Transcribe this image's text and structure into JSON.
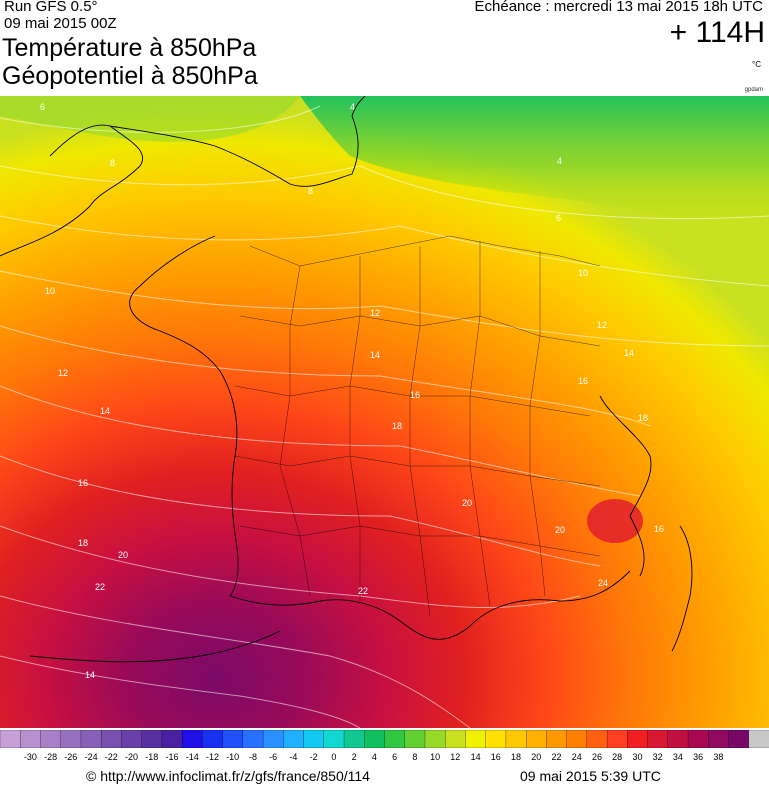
{
  "header": {
    "run_label": "Run GFS 0.5°",
    "run_date": "09 mai 2015 00Z",
    "title_line1": "Température à 850hPa",
    "title_line2": "Géopotentiel à 850hPa",
    "echeance": "Echéance : mercredi 13 mai 2015 18h UTC",
    "lead_time": "+ 114H",
    "unit": "°C",
    "credit": "gpdam"
  },
  "legend": {
    "min": -32,
    "max": 40,
    "step": 2,
    "colors": [
      "#c8a0d8",
      "#b890d0",
      "#a880c8",
      "#9870c0",
      "#8860b8",
      "#7850b0",
      "#6840a8",
      "#5830a0",
      "#4820a0",
      "#2010e8",
      "#1830f0",
      "#2050f8",
      "#2870ff",
      "#2890ff",
      "#20b0ff",
      "#10c8f0",
      "#10d8d0",
      "#10c890",
      "#10c060",
      "#30c840",
      "#60d030",
      "#98d828",
      "#c8e020",
      "#f0f000",
      "#ffe000",
      "#ffc800",
      "#ffb000",
      "#ff9800",
      "#ff8000",
      "#ff6010",
      "#ff4020",
      "#f02020",
      "#d81830",
      "#c01040",
      "#a80850",
      "#900860",
      "#780868",
      "#c8c8c8"
    ],
    "tick_labels": [
      "-30",
      "-28",
      "-26",
      "-24",
      "-22",
      "-20",
      "-18",
      "-16",
      "-14",
      "-12",
      "-10",
      "-8",
      "-6",
      "-4",
      "-2",
      "0",
      "2",
      "4",
      "6",
      "8",
      "10",
      "12",
      "14",
      "16",
      "18",
      "20",
      "22",
      "24",
      "26",
      "28",
      "30",
      "32",
      "34",
      "36",
      "38"
    ]
  },
  "map": {
    "contour_labels": [
      "6",
      "4",
      "4",
      "8",
      "8",
      "6",
      "10",
      "10",
      "12",
      "12",
      "12",
      "14",
      "14",
      "14",
      "16",
      "16",
      "16",
      "18",
      "18",
      "18",
      "20",
      "20",
      "20",
      "22",
      "22",
      "24",
      "14",
      "16"
    ]
  },
  "footer": {
    "source": "© http://www.infoclimat.fr/z/gfs/france/850/114",
    "timestamp": "09 mai 2015  5:39 UTC"
  }
}
